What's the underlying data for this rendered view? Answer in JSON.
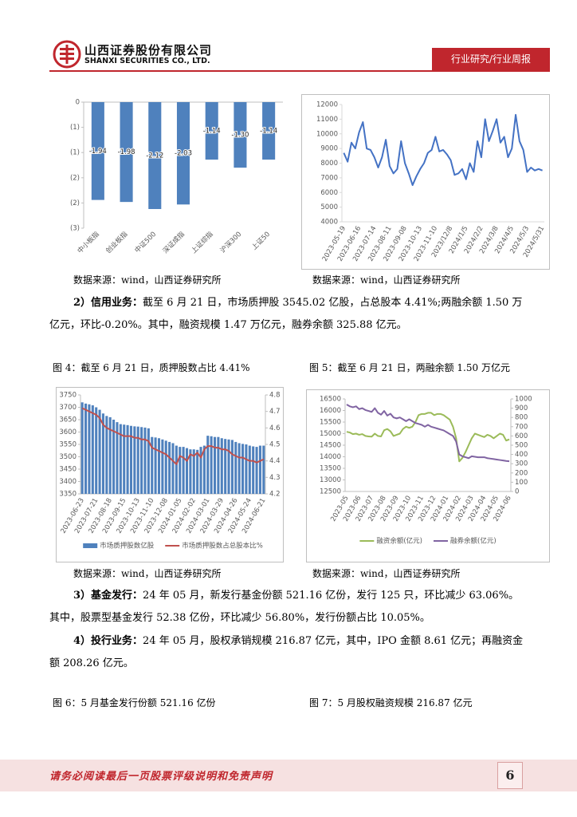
{
  "header": {
    "company_cn": "山西证券股份有限公司",
    "company_en": "SHANXI SECURITIES CO., LTD.",
    "tag": "行业研究/行业周报"
  },
  "chart_data": [
    {
      "type": "bar",
      "color": "#4f81bd",
      "categories": [
        "中小板指",
        "创业板指",
        "中证500",
        "深证成指",
        "上证综指",
        "沪深300",
        "上证50"
      ],
      "values": [
        -1.94,
        -1.98,
        -2.12,
        -2.03,
        -1.14,
        -1.3,
        -1.14
      ],
      "value_labels": [
        "-1.94",
        "-1.98",
        "-2.12",
        "-2.03",
        "-1.14",
        "-1.30",
        "-1.14"
      ],
      "ylim": [
        -2.5,
        0
      ],
      "yticks": [
        0,
        {
          "value": -0.5,
          "label": "(1)"
        },
        {
          "value": -1,
          "label": "(1)"
        },
        {
          "value": -1.5,
          "label": "(2)"
        },
        {
          "value": -2,
          "label": "(2)"
        },
        {
          "value": -2.5,
          "label": "(3)"
        }
      ]
    },
    {
      "type": "line",
      "color": "#4472c4",
      "categories": [
        "2023-05-19",
        null,
        null,
        null,
        "2023-06-16",
        null,
        null,
        null,
        "2023-07-14",
        null,
        null,
        null,
        "2023-08-11",
        null,
        null,
        null,
        "2023-09-08",
        null,
        null,
        null,
        "2023-10-13",
        null,
        null,
        null,
        "2023-11-10",
        null,
        null,
        null,
        "2023/12/8",
        null,
        null,
        null,
        "2024/1/5",
        null,
        null,
        null,
        "2024/2/2",
        null,
        null,
        null,
        "2024/3/8",
        null,
        null,
        null,
        "2024/4/5",
        null,
        null,
        null,
        "2024/5/3",
        null,
        null,
        null,
        "2024/5/31"
      ],
      "values": [
        8700,
        8100,
        9400,
        9000,
        10100,
        10800,
        9000,
        8900,
        8400,
        7700,
        8400,
        9600,
        7800,
        7300,
        7600,
        9500,
        8000,
        7300,
        6500,
        7100,
        7600,
        8000,
        8700,
        8900,
        9800,
        8800,
        8900,
        8600,
        8200,
        7200,
        7300,
        7600,
        6900,
        8000,
        7400,
        9500,
        8400,
        11000,
        9500,
        10200,
        11000,
        9400,
        9800,
        8400,
        9000,
        11300,
        9500,
        8900,
        7400,
        7700,
        7500,
        7600,
        7500
      ],
      "ylim": [
        4000,
        12000
      ],
      "yticks": [
        4000,
        5000,
        6000,
        7000,
        8000,
        9000,
        10000,
        11000,
        12000
      ]
    },
    {
      "type": "bar",
      "legend": "bottom",
      "categories": [
        "2023-06-23",
        null,
        null,
        null,
        "2023-07-21",
        null,
        null,
        null,
        "2023-08-18",
        null,
        null,
        null,
        "2023-09-15",
        null,
        null,
        null,
        "2023-10-13",
        null,
        null,
        null,
        "2023-11-10",
        null,
        null,
        null,
        "2023-12-08",
        null,
        null,
        null,
        "2024-01-05",
        null,
        null,
        null,
        "2024-02-02",
        null,
        null,
        null,
        "2024-03-01",
        null,
        null,
        null,
        "2024-03-29",
        null,
        null,
        null,
        "2024-04-26",
        null,
        null,
        null,
        "2024-05-24",
        null,
        null,
        null,
        "2024-06-21"
      ],
      "series": [
        {
          "name": "市场质押股数亿股",
          "type": "bar",
          "color": "#4f81bd",
          "values": [
            3720,
            3715,
            3712,
            3708,
            3700,
            3690,
            3675,
            3665,
            3660,
            3650,
            3640,
            3632,
            3630,
            3628,
            3625,
            3623,
            3622,
            3620,
            3618,
            3615,
            3580,
            3578,
            3575,
            3570,
            3565,
            3560,
            3555,
            3545,
            3540,
            3540,
            3535,
            3530,
            3530,
            3528,
            3540,
            3545,
            3585,
            3583,
            3580,
            3580,
            3575,
            3572,
            3570,
            3568,
            3560,
            3555,
            3552,
            3550,
            3545,
            3542,
            3540,
            3545,
            3545
          ]
        },
        {
          "name": "市场质押股数占总股本比%",
          "type": "line",
          "axis": "y2",
          "color": "#c0504d",
          "values": [
            4.72,
            4.71,
            4.7,
            4.69,
            4.68,
            4.66,
            4.62,
            4.6,
            4.59,
            4.58,
            4.57,
            4.56,
            4.55,
            4.55,
            4.55,
            4.54,
            4.54,
            4.53,
            4.53,
            4.52,
            4.48,
            4.47,
            4.46,
            4.45,
            4.44,
            4.42,
            4.4,
            4.38,
            4.43,
            4.42,
            4.4,
            4.44,
            4.43,
            4.45,
            4.42,
            4.47,
            4.49,
            4.49,
            4.48,
            4.48,
            4.47,
            4.47,
            4.46,
            4.44,
            4.43,
            4.42,
            4.42,
            4.41,
            4.4,
            4.4,
            4.39,
            4.4,
            4.41
          ]
        }
      ],
      "ylim": [
        3350,
        3750
      ],
      "yticks": [
        3350,
        3400,
        3450,
        3500,
        3550,
        3600,
        3650,
        3700,
        3750
      ],
      "y2lim": [
        4.2,
        4.8
      ],
      "y2ticks": [
        4.2,
        4.3,
        4.4,
        4.5,
        4.6,
        4.7,
        4.8
      ]
    },
    {
      "type": "line",
      "legend": "bottom",
      "categories": [
        "2023-05",
        null,
        null,
        null,
        "2023-06",
        null,
        null,
        null,
        "2023-07",
        null,
        null,
        null,
        "2023-08",
        null,
        null,
        null,
        "2023-09",
        null,
        null,
        null,
        "2023-10",
        null,
        null,
        null,
        "2023-11",
        null,
        null,
        null,
        "2023-12",
        null,
        null,
        null,
        "2024-01",
        null,
        null,
        null,
        "2024-02",
        null,
        null,
        null,
        "2024-03",
        null,
        null,
        null,
        "2024-04",
        null,
        null,
        null,
        "2024-05",
        null,
        null,
        null,
        "2024-06"
      ],
      "series": [
        {
          "name": "融资余额(亿元)",
          "color": "#9bbb59",
          "values": [
            15080,
            15050,
            14980,
            15000,
            14950,
            14980,
            14900,
            14880,
            14870,
            15000,
            14900,
            14880,
            15150,
            15200,
            15100,
            14900,
            14950,
            15000,
            15200,
            15300,
            15250,
            15300,
            15500,
            15800,
            15850,
            15850,
            15900,
            15900,
            15800,
            15850,
            15850,
            15800,
            15700,
            15600,
            15300,
            14800,
            13800,
            13950,
            14200,
            14500,
            14800,
            15000,
            14950,
            14900,
            14850,
            14950,
            14900,
            14800,
            14900,
            15000,
            14950,
            14700,
            14750
          ]
        },
        {
          "name": "融券余额(亿元)",
          "axis": "y2",
          "color": "#8064a2",
          "values": [
            940,
            920,
            910,
            920,
            890,
            900,
            880,
            870,
            860,
            900,
            850,
            830,
            870,
            820,
            840,
            800,
            790,
            800,
            780,
            760,
            780,
            760,
            740,
            730,
            720,
            700,
            720,
            700,
            690,
            680,
            670,
            660,
            640,
            620,
            600,
            540,
            400,
            380,
            370,
            360,
            380,
            375,
            370,
            370,
            370,
            360,
            355,
            350,
            345,
            340,
            335,
            330,
            326
          ]
        }
      ],
      "ylim": [
        12500,
        16500
      ],
      "yticks": [
        12500,
        13000,
        13500,
        14000,
        14500,
        15000,
        15500,
        16000,
        16500
      ],
      "y2lim": [
        0,
        1000
      ],
      "y2ticks": [
        0,
        100,
        200,
        300,
        400,
        500,
        600,
        700,
        800,
        900,
        1000
      ]
    }
  ],
  "captions": [
    "数据来源：wind，山西证券研究所",
    "数据来源：wind，山西证券研究所",
    "数据来源：wind，山西证券研究所",
    "数据来源：wind，山西证券研究所"
  ],
  "figure_titles": [
    "图 4：截至 6 月 21 日，质押股数占比 4.41%",
    "图 5：截至 6 月 21 日，两融余额 1.50 万亿元",
    "图 6：5 月基金发行份额 521.16 亿份",
    "图 7：5 月股权融资规模 216.87 亿元"
  ],
  "paragraphs": [
    {
      "lead": "2）信用业务：",
      "text": "截至 6 月 21 日，市场质押股 3545.02 亿股，占总股本 4.41%;两融余额 1.50 万亿元，环比-0.20%。其中，融资规模 1.47 万亿元，融券余额 325.88 亿元。"
    },
    {
      "lead": "3）基金发行：",
      "text": "24 年 05 月，新发行基金份额 521.16 亿份，发行 125 只，环比减少 63.06%。其中，股票型基金发行 52.38 亿份，环比减少 56.80%，发行份额占比 10.05%。"
    },
    {
      "lead": "4）投行业务：",
      "text": "24 年 05 月，股权承销规模 216.87 亿元，其中，IPO 金额 8.61 亿元；再融资金额 208.26 亿元。"
    }
  ],
  "footer": {
    "notice": "请务必阅读最后一页股票评级说明和免责声明",
    "page": "6"
  }
}
